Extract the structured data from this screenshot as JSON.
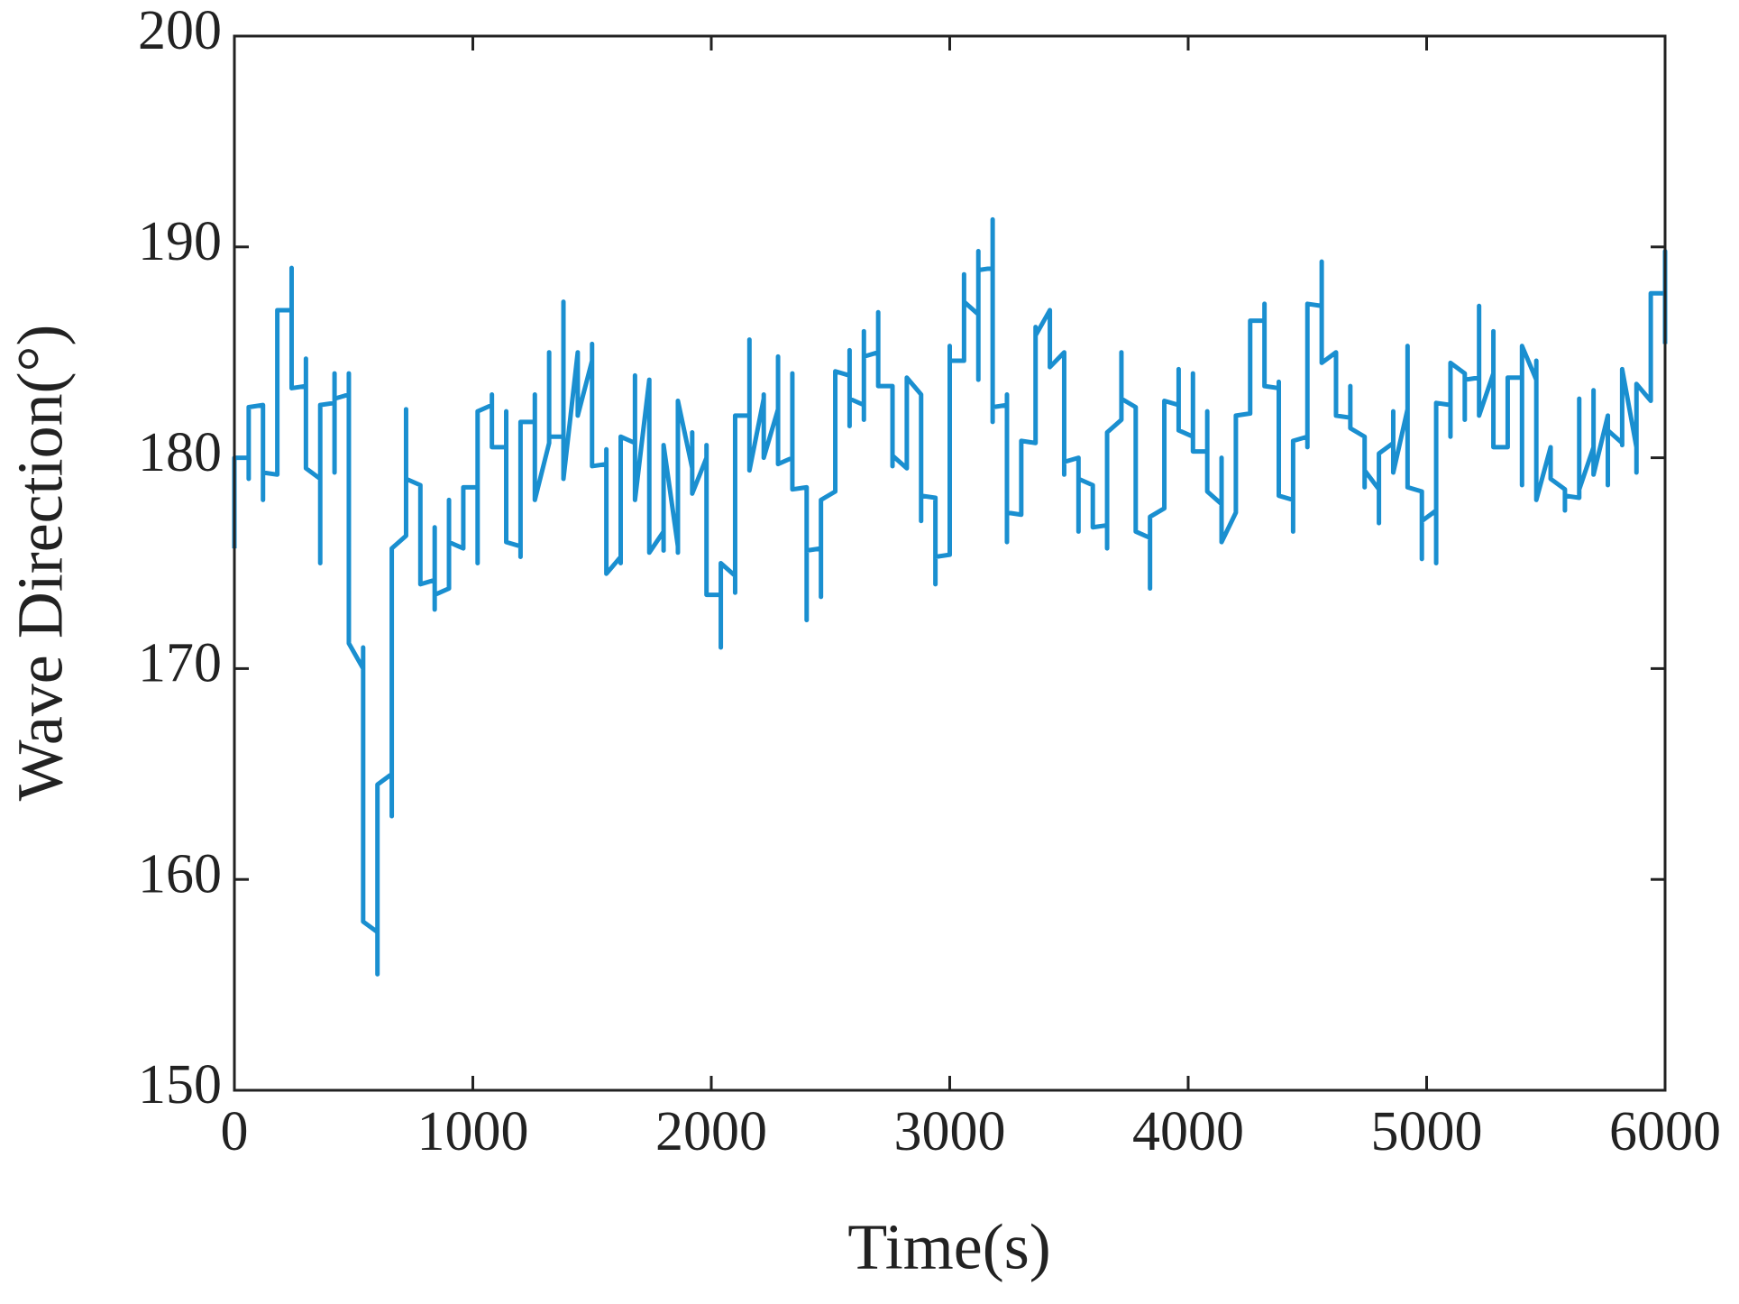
{
  "chart_data": {
    "type": "line",
    "xlabel": "Time(s)",
    "ylabel": "Wave Direction(°)",
    "color": "#1a8fd0",
    "xlim": [
      0,
      6000
    ],
    "ylim": [
      150,
      200
    ],
    "xticks": [
      0,
      1000,
      2000,
      3000,
      4000,
      5000,
      6000
    ],
    "yticks": [
      150,
      160,
      170,
      180,
      190,
      200
    ],
    "grid": false,
    "x": [
      0,
      0,
      0,
      60,
      60,
      60,
      120,
      120,
      120,
      180,
      180,
      240,
      240,
      240,
      300,
      300,
      300,
      360,
      360,
      360,
      420,
      420,
      420,
      420,
      480,
      480,
      480,
      540,
      540,
      540,
      600,
      600,
      600,
      660,
      660,
      660,
      720,
      720,
      720,
      780,
      780,
      840,
      840,
      840,
      840,
      900,
      900,
      900,
      960,
      960,
      1020,
      1020,
      1020,
      1080,
      1080,
      1080,
      1140,
      1140,
      1140,
      1200,
      1200,
      1200,
      1260,
      1260,
      1260,
      1320,
      1320,
      1320,
      1380,
      1380,
      1380,
      1440,
      1440,
      1500,
      1500,
      1500,
      1560,
      1560,
      1560,
      1620,
      1620,
      1620,
      1680,
      1680,
      1680,
      1740,
      1740,
      1800,
      1800,
      1800,
      1860,
      1860,
      1860,
      1920,
      1920,
      1920,
      1980,
      1980,
      1980,
      2040,
      2040,
      2040,
      2100,
      2100,
      2100,
      2160,
      2160,
      2160,
      2220,
      2220,
      2220,
      2280,
      2280,
      2280,
      2340,
      2340,
      2340,
      2400,
      2400,
      2400,
      2460,
      2460,
      2460,
      2520,
      2520,
      2580,
      2580,
      2580,
      2580,
      2640,
      2640,
      2640,
      2640,
      2700,
      2700,
      2700,
      2760,
      2760,
      2760,
      2820,
      2820,
      2880,
      2880,
      2880,
      2940,
      2940,
      2940,
      3000,
      3000,
      3000,
      3060,
      3060,
      3060,
      3120,
      3120,
      3120,
      3120,
      3180,
      3180,
      3180,
      3180,
      3240,
      3240,
      3240,
      3240,
      3300,
      3300,
      3300,
      3360,
      3360,
      3360,
      3420,
      3420,
      3420,
      3480,
      3480,
      3480,
      3540,
      3540,
      3540,
      3600,
      3600,
      3660,
      3660,
      3660,
      3720,
      3720,
      3720,
      3780,
      3780,
      3840,
      3840,
      3840,
      3900,
      3900,
      3960,
      3960,
      3960,
      4020,
      4020,
      4020,
      4080,
      4080,
      4080,
      4140,
      4140,
      4140,
      4200,
      4200,
      4200,
      4260,
      4260,
      4320,
      4320,
      4320,
      4380,
      4380,
      4380,
      4440,
      4440,
      4440,
      4500,
      4500,
      4500,
      4560,
      4560,
      4560,
      4620,
      4620,
      4680,
      4680,
      4680,
      4740,
      4740,
      4740,
      4800,
      4800,
      4800,
      4860,
      4860,
      4860,
      4920,
      4920,
      4920,
      4980,
      4980,
      4980,
      5040,
      5040,
      5040,
      5100,
      5100,
      5100,
      5160,
      5160,
      5160,
      5220,
      5220,
      5220,
      5280,
      5280,
      5280,
      5340,
      5340,
      5400,
      5400,
      5400,
      5460,
      5460,
      5460,
      5520,
      5520,
      5520,
      5580,
      5580,
      5580,
      5640,
      5640,
      5640,
      5700,
      5700,
      5700,
      5760,
      5760,
      5760,
      5820,
      5820,
      5820,
      5880,
      5880,
      5880,
      5940,
      5940,
      5940,
      6000,
      6000,
      6000
    ],
    "values": [
      175.7,
      180,
      180,
      180,
      179,
      182.4,
      182.5,
      178,
      179.3,
      179.2,
      187,
      187,
      189,
      183.3,
      183.4,
      184.7,
      179.5,
      179,
      175,
      182.5,
      182.6,
      184,
      179.3,
      182.8,
      183,
      184,
      171.2,
      170,
      171,
      158,
      157.5,
      155.5,
      164.5,
      165,
      163,
      175.7,
      176.3,
      182.3,
      179,
      178.7,
      174,
      174.2,
      172.8,
      176.7,
      173.5,
      173.8,
      178,
      176,
      175.7,
      178.6,
      178.6,
      175,
      182.2,
      182.5,
      183,
      180.5,
      180.5,
      182.2,
      176,
      175.8,
      175.3,
      181.7,
      181.7,
      183,
      178,
      180.7,
      185,
      181,
      181,
      187.4,
      179,
      185,
      182,
      184.6,
      185.4,
      179.6,
      179.7,
      180.4,
      174.5,
      175.3,
      175,
      181,
      180.7,
      183.9,
      178,
      183.7,
      175.5,
      176.5,
      175.6,
      180.6,
      175.8,
      175.5,
      182.7,
      179.5,
      181.2,
      178.3,
      180,
      180.6,
      173.5,
      173.5,
      171,
      175,
      174.4,
      173.6,
      182,
      182,
      185.6,
      179.4,
      182.8,
      183,
      180,
      182.3,
      184.8,
      179.7,
      180,
      184,
      178.5,
      178.6,
      172.3,
      175.6,
      175.7,
      173.4,
      178,
      178.4,
      184.1,
      183.9,
      181.5,
      185.1,
      182.8,
      182.5,
      186,
      181.8,
      184.8,
      185,
      186.9,
      183.4,
      183.4,
      179.6,
      180.1,
      179.5,
      183.8,
      183,
      177,
      178.2,
      178.1,
      174,
      175.3,
      175.4,
      185.3,
      184.6,
      184.6,
      188.7,
      187.4,
      186.8,
      183.7,
      189.8,
      188.9,
      189,
      191.3,
      181.7,
      182.4,
      182.5,
      183,
      176,
      177.4,
      177.3,
      180.3,
      180.8,
      180.7,
      186.2,
      185.8,
      187,
      184.5,
      184.3,
      185,
      179.2,
      179.8,
      180,
      176.5,
      179,
      178.7,
      176.7,
      176.8,
      175.7,
      181.2,
      181.8,
      185,
      182.8,
      182.4,
      176.5,
      176.2,
      173.8,
      177.2,
      177.6,
      182.7,
      182.5,
      184.2,
      181.3,
      181,
      184,
      180.3,
      180.3,
      182.2,
      178.4,
      177.8,
      180,
      176,
      177.4,
      177.5,
      182,
      182.1,
      186.5,
      186.5,
      187.3,
      183.4,
      183.3,
      183.6,
      178.2,
      178,
      176.5,
      180.8,
      181,
      180.5,
      187.3,
      187.2,
      189.3,
      184.5,
      185,
      182,
      181.9,
      183.4,
      181.4,
      181,
      178.6,
      179.4,
      178.5,
      176.9,
      180.2,
      180.7,
      182.2,
      179.3,
      182.3,
      185.3,
      178.6,
      178.4,
      175.2,
      177,
      177.5,
      175,
      182.6,
      182.5,
      181,
      184.5,
      184,
      181.8,
      183.7,
      183.8,
      187.2,
      182,
      184,
      186,
      180.5,
      180.5,
      183.8,
      183.8,
      178.7,
      185.3,
      183.7,
      184.6,
      178,
      180.5,
      180,
      179,
      178.5,
      177.5,
      178.2,
      178.1,
      182.8,
      178.5,
      180.5,
      183.2,
      179.2,
      182,
      178.7,
      181.3,
      180.7,
      180.6,
      184.2,
      180.5,
      179.3,
      183.5,
      182.7,
      183,
      187.8,
      187.8,
      189.8,
      185.4
    ]
  }
}
